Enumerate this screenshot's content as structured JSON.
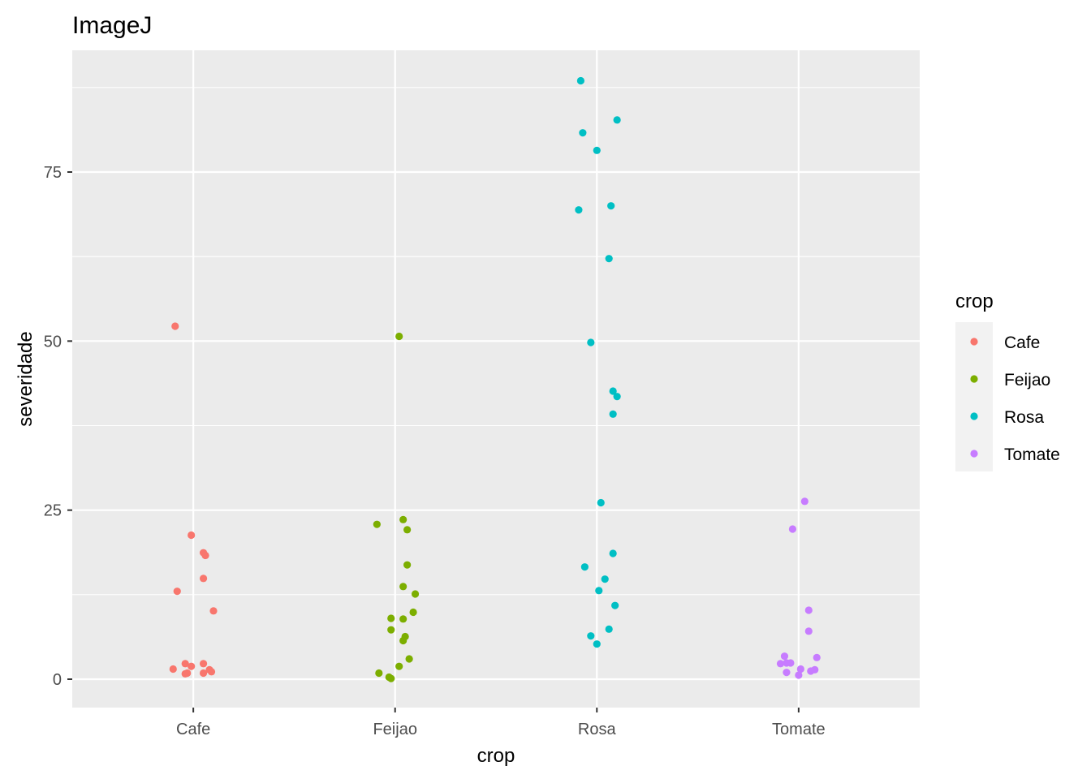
{
  "chart_data": {
    "type": "scatter",
    "title": "ImageJ",
    "xlabel": "crop",
    "ylabel": "severidade",
    "categories": [
      "Cafe",
      "Feijao",
      "Rosa",
      "Tomate"
    ],
    "ylim": [
      -4.2,
      93.0
    ],
    "yticks": [
      0,
      25,
      50,
      75
    ],
    "ytick_labels": [
      "0",
      "25",
      "50",
      "75"
    ],
    "grid": true,
    "jitter": true,
    "legend": {
      "title": "crop",
      "position": "right",
      "items": [
        {
          "label": "Cafe",
          "color": "#F8766D"
        },
        {
          "label": "Feijao",
          "color": "#7CAE00"
        },
        {
          "label": "Rosa",
          "color": "#00BFC4"
        },
        {
          "label": "Tomate",
          "color": "#C77CFF"
        }
      ]
    },
    "series": [
      {
        "category": "Cafe",
        "color": "#F8766D",
        "points": [
          {
            "x": 0.91,
            "y": 52.2
          },
          {
            "x": 0.99,
            "y": 21.3
          },
          {
            "x": 1.05,
            "y": 18.7
          },
          {
            "x": 1.06,
            "y": 18.3
          },
          {
            "x": 1.05,
            "y": 14.9
          },
          {
            "x": 0.92,
            "y": 13.0
          },
          {
            "x": 1.1,
            "y": 10.1
          },
          {
            "x": 0.96,
            "y": 2.3
          },
          {
            "x": 1.05,
            "y": 2.3
          },
          {
            "x": 0.99,
            "y": 1.9
          },
          {
            "x": 0.9,
            "y": 1.5
          },
          {
            "x": 1.08,
            "y": 1.4
          },
          {
            "x": 1.09,
            "y": 1.1
          },
          {
            "x": 0.96,
            "y": 0.8
          },
          {
            "x": 0.97,
            "y": 0.9
          },
          {
            "x": 1.05,
            "y": 0.9
          }
        ]
      },
      {
        "category": "Feijao",
        "color": "#7CAE00",
        "points": [
          {
            "x": 2.02,
            "y": 50.7
          },
          {
            "x": 2.04,
            "y": 23.6
          },
          {
            "x": 1.91,
            "y": 22.9
          },
          {
            "x": 2.06,
            "y": 22.1
          },
          {
            "x": 2.06,
            "y": 16.9
          },
          {
            "x": 2.04,
            "y": 13.7
          },
          {
            "x": 2.1,
            "y": 12.6
          },
          {
            "x": 2.09,
            "y": 9.9
          },
          {
            "x": 1.98,
            "y": 9.0
          },
          {
            "x": 2.04,
            "y": 8.9
          },
          {
            "x": 1.98,
            "y": 7.3
          },
          {
            "x": 2.05,
            "y": 6.3
          },
          {
            "x": 2.04,
            "y": 5.7
          },
          {
            "x": 2.07,
            "y": 3.0
          },
          {
            "x": 2.02,
            "y": 1.9
          },
          {
            "x": 1.92,
            "y": 0.9
          },
          {
            "x": 1.97,
            "y": 0.3
          },
          {
            "x": 1.98,
            "y": 0.1
          }
        ]
      },
      {
        "category": "Rosa",
        "color": "#00BFC4",
        "points": [
          {
            "x": 2.92,
            "y": 88.5
          },
          {
            "x": 3.1,
            "y": 82.7
          },
          {
            "x": 2.93,
            "y": 80.8
          },
          {
            "x": 3.0,
            "y": 78.2
          },
          {
            "x": 3.07,
            "y": 70.0
          },
          {
            "x": 2.91,
            "y": 69.4
          },
          {
            "x": 3.06,
            "y": 62.2
          },
          {
            "x": 2.97,
            "y": 49.8
          },
          {
            "x": 3.08,
            "y": 42.6
          },
          {
            "x": 3.1,
            "y": 41.8
          },
          {
            "x": 3.08,
            "y": 39.2
          },
          {
            "x": 3.02,
            "y": 26.1
          },
          {
            "x": 3.08,
            "y": 18.6
          },
          {
            "x": 2.94,
            "y": 16.6
          },
          {
            "x": 3.04,
            "y": 14.8
          },
          {
            "x": 3.01,
            "y": 13.1
          },
          {
            "x": 3.09,
            "y": 10.9
          },
          {
            "x": 3.06,
            "y": 7.4
          },
          {
            "x": 2.97,
            "y": 6.4
          },
          {
            "x": 3.0,
            "y": 5.2
          }
        ]
      },
      {
        "category": "Tomate",
        "color": "#C77CFF",
        "points": [
          {
            "x": 4.03,
            "y": 26.3
          },
          {
            "x": 3.97,
            "y": 22.2
          },
          {
            "x": 4.05,
            "y": 10.2
          },
          {
            "x": 4.05,
            "y": 7.1
          },
          {
            "x": 3.93,
            "y": 3.4
          },
          {
            "x": 4.09,
            "y": 3.2
          },
          {
            "x": 3.96,
            "y": 2.4
          },
          {
            "x": 3.91,
            "y": 2.3
          },
          {
            "x": 3.94,
            "y": 2.4
          },
          {
            "x": 4.01,
            "y": 1.5
          },
          {
            "x": 4.08,
            "y": 1.4
          },
          {
            "x": 4.06,
            "y": 1.2
          },
          {
            "x": 3.94,
            "y": 1.0
          },
          {
            "x": 4.0,
            "y": 0.6
          }
        ]
      }
    ]
  }
}
